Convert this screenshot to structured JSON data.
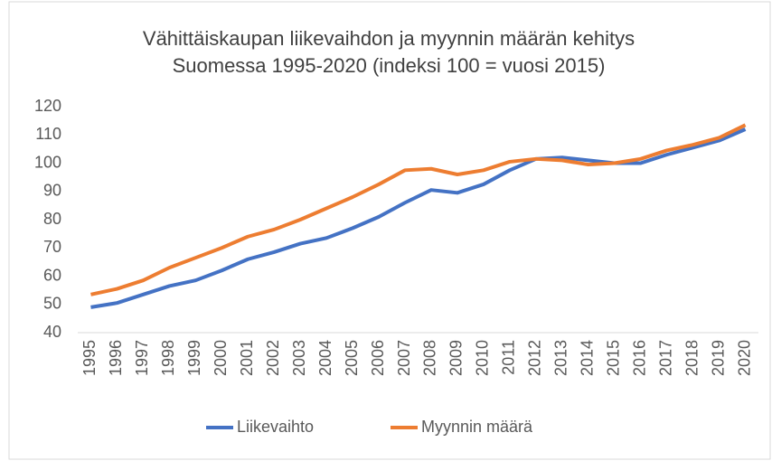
{
  "chart_data": {
    "type": "line",
    "title": [
      "Vähittäiskaupan liikevaihdon ja myynnin määrän kehitys",
      "Suomessa 1995-2020 (indeksi 100 = vuosi 2015)"
    ],
    "categories": [
      "1995",
      "1996",
      "1997",
      "1998",
      "1999",
      "2000",
      "2001",
      "2002",
      "2003",
      "2004",
      "2005",
      "2006",
      "2007",
      "2008",
      "2009",
      "2010",
      "2011",
      "2012",
      "2013",
      "2014",
      "2015",
      "2016",
      "2017",
      "2018",
      "2019",
      "2020"
    ],
    "series": [
      {
        "name": "Liikevaihto",
        "color": "#4472c4",
        "values": [
          49,
          50.5,
          53.5,
          56.5,
          58.5,
          62,
          66,
          68.5,
          71.5,
          73.5,
          77,
          81,
          86,
          90.5,
          89.5,
          92.5,
          97.5,
          101.5,
          102,
          101,
          100,
          100,
          103,
          105.5,
          108,
          112
        ]
      },
      {
        "name": "Myynnin määrä",
        "color": "#ed7d31",
        "values": [
          53.5,
          55.5,
          58.5,
          63,
          66.5,
          70,
          74,
          76.5,
          80,
          84,
          88,
          92.5,
          97.5,
          98,
          96,
          97.5,
          100.5,
          101.5,
          101,
          99.5,
          100,
          101.5,
          104.5,
          106.5,
          109,
          113.5
        ]
      }
    ],
    "ylim": [
      40,
      120
    ],
    "yticks": [
      40,
      50,
      60,
      70,
      80,
      90,
      100,
      110,
      120
    ],
    "grid": false,
    "legend": "bottom"
  }
}
